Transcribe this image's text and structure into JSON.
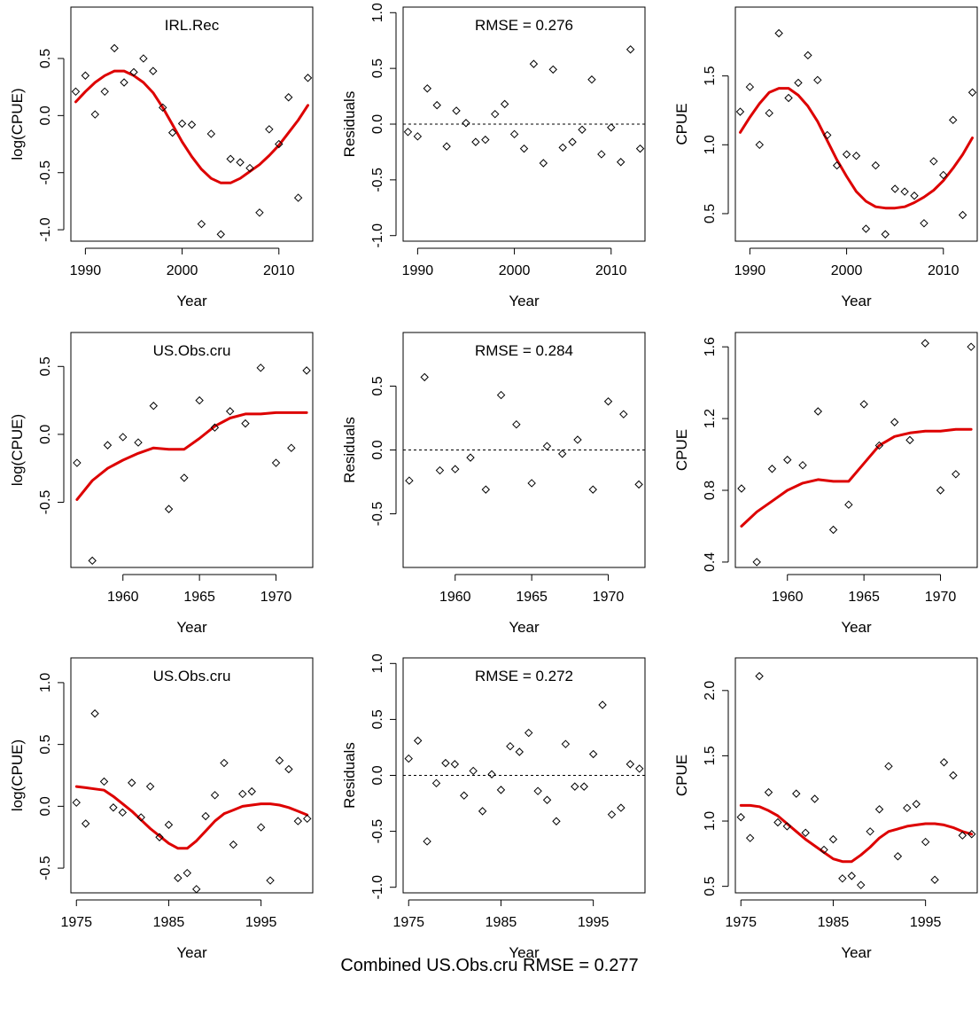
{
  "figure_caption": "Combined US.Obs.cru RMSE = 0.277",
  "colors": {
    "fit_line": "#dd0000",
    "points": "#000000",
    "axis": "#000000",
    "zero_line": "#000000"
  },
  "chart_data": [
    {
      "type": "scatter",
      "subtype": "log-cpue-fit",
      "title": "IRL.Rec",
      "xlabel": "Year",
      "ylabel": "log(CPUE)",
      "xlim": [
        1988.5,
        2013.5
      ],
      "ylim": [
        -1.1,
        0.95
      ],
      "xticks": [
        1990,
        2000,
        2010
      ],
      "yticks": [
        -1.0,
        -0.5,
        0.0,
        0.5
      ],
      "ytick_labels": [
        "-1.0",
        "-0.5",
        "0.0",
        "0.5"
      ],
      "points": {
        "x": [
          1989,
          1990,
          1991,
          1992,
          1993,
          1994,
          1995,
          1996,
          1997,
          1998,
          1999,
          2000,
          2001,
          2002,
          2003,
          2004,
          2005,
          2006,
          2007,
          2008,
          2009,
          2010,
          2011,
          2012,
          2013
        ],
        "y": [
          0.21,
          0.35,
          0.01,
          0.21,
          0.59,
          0.29,
          0.38,
          0.5,
          0.39,
          0.07,
          -0.15,
          -0.07,
          -0.08,
          -0.95,
          -0.16,
          -1.04,
          -0.38,
          -0.41,
          -0.46,
          -0.85,
          -0.12,
          -0.25,
          0.16,
          -0.72,
          0.33
        ]
      },
      "fit_line": {
        "x": [
          1989,
          1990,
          1991,
          1992,
          1993,
          1994,
          1995,
          1996,
          1997,
          1998,
          1999,
          2000,
          2001,
          2002,
          2003,
          2004,
          2005,
          2006,
          2007,
          2008,
          2009,
          2010,
          2011,
          2012,
          2013
        ],
        "y": [
          0.12,
          0.21,
          0.29,
          0.35,
          0.39,
          0.39,
          0.35,
          0.29,
          0.2,
          0.07,
          -0.08,
          -0.23,
          -0.36,
          -0.47,
          -0.55,
          -0.59,
          -0.59,
          -0.55,
          -0.49,
          -0.43,
          -0.35,
          -0.26,
          -0.15,
          -0.04,
          0.09
        ]
      }
    },
    {
      "type": "scatter",
      "subtype": "residuals",
      "title": "RMSE = 0.276",
      "xlabel": "Year",
      "ylabel": "Residuals",
      "xlim": [
        1988.5,
        2013.5
      ],
      "ylim": [
        -1.05,
        1.05
      ],
      "xticks": [
        1990,
        2000,
        2010
      ],
      "yticks": [
        -1.0,
        -0.5,
        0.0,
        0.5,
        1.0
      ],
      "ytick_labels": [
        "-1.0",
        "-0.5",
        "0.0",
        "0.5",
        "1.0"
      ],
      "zero_line": true,
      "points": {
        "x": [
          1989,
          1990,
          1991,
          1992,
          1993,
          1994,
          1995,
          1996,
          1997,
          1998,
          1999,
          2000,
          2001,
          2002,
          2003,
          2004,
          2005,
          2006,
          2007,
          2008,
          2009,
          2010,
          2011,
          2012,
          2013
        ],
        "y": [
          -0.07,
          -0.11,
          0.32,
          0.17,
          -0.2,
          0.12,
          0.01,
          -0.16,
          -0.14,
          0.09,
          0.18,
          -0.09,
          -0.22,
          0.54,
          -0.35,
          0.49,
          -0.21,
          -0.16,
          -0.05,
          0.4,
          -0.27,
          -0.03,
          -0.34,
          0.67,
          -0.22
        ]
      }
    },
    {
      "type": "scatter",
      "subtype": "cpue-fit",
      "title": "",
      "xlabel": "Year",
      "ylabel": "CPUE",
      "xlim": [
        1988.5,
        2013.5
      ],
      "ylim": [
        0.3,
        2.0
      ],
      "xticks": [
        1990,
        2000,
        2010
      ],
      "yticks": [
        0.5,
        1.0,
        1.5
      ],
      "ytick_labels": [
        "0.5",
        "1.0",
        "1.5"
      ],
      "points": {
        "x": [
          1989,
          1990,
          1991,
          1992,
          1993,
          1994,
          1995,
          1996,
          1997,
          1998,
          1999,
          2000,
          2001,
          2002,
          2003,
          2004,
          2005,
          2006,
          2007,
          2008,
          2009,
          2010,
          2011,
          2012,
          2013
        ],
        "y": [
          1.24,
          1.42,
          1.0,
          1.23,
          1.81,
          1.34,
          1.45,
          1.65,
          1.47,
          1.07,
          0.85,
          0.93,
          0.92,
          0.39,
          0.85,
          0.35,
          0.68,
          0.66,
          0.63,
          0.43,
          0.88,
          0.78,
          1.18,
          0.49,
          1.38
        ]
      },
      "fit_line": {
        "x": [
          1989,
          1990,
          1991,
          1992,
          1993,
          1994,
          1995,
          1996,
          1997,
          1998,
          1999,
          2000,
          2001,
          2002,
          2003,
          2004,
          2005,
          2006,
          2007,
          2008,
          2009,
          2010,
          2011,
          2012,
          2013
        ],
        "y": [
          1.09,
          1.2,
          1.3,
          1.38,
          1.41,
          1.41,
          1.36,
          1.28,
          1.17,
          1.03,
          0.89,
          0.77,
          0.66,
          0.59,
          0.55,
          0.54,
          0.54,
          0.55,
          0.58,
          0.62,
          0.67,
          0.74,
          0.83,
          0.93,
          1.05
        ]
      }
    },
    {
      "type": "scatter",
      "subtype": "log-cpue-fit",
      "title": "US.Obs.cru",
      "xlabel": "Year",
      "ylabel": "log(CPUE)",
      "xlim": [
        1956.6,
        1972.4
      ],
      "ylim": [
        -0.98,
        0.75
      ],
      "xticks": [
        1960,
        1965,
        1970
      ],
      "yticks": [
        -0.5,
        0.0,
        0.5
      ],
      "ytick_labels": [
        "-0.5",
        "0.0",
        "0.5"
      ],
      "points": {
        "x": [
          1957,
          1958,
          1959,
          1960,
          1961,
          1962,
          1963,
          1964,
          1965,
          1966,
          1967,
          1968,
          1969,
          1970,
          1971,
          1972
        ],
        "y": [
          -0.21,
          -0.93,
          -0.08,
          -0.02,
          -0.06,
          0.21,
          -0.55,
          -0.32,
          0.25,
          0.05,
          0.17,
          0.08,
          0.49,
          -0.21,
          -0.1,
          0.47
        ]
      },
      "fit_line": {
        "x": [
          1957,
          1958,
          1959,
          1960,
          1961,
          1962,
          1963,
          1964,
          1965,
          1966,
          1967,
          1968,
          1969,
          1970,
          1971,
          1972
        ],
        "y": [
          -0.48,
          -0.34,
          -0.25,
          -0.19,
          -0.14,
          -0.1,
          -0.11,
          -0.11,
          -0.03,
          0.06,
          0.12,
          0.15,
          0.15,
          0.16,
          0.16,
          0.16
        ]
      }
    },
    {
      "type": "scatter",
      "subtype": "residuals",
      "title": "RMSE = 0.284",
      "xlabel": "Year",
      "ylabel": "Residuals",
      "xlim": [
        1956.6,
        1972.4
      ],
      "ylim": [
        -0.92,
        0.92
      ],
      "xticks": [
        1960,
        1965,
        1970
      ],
      "yticks": [
        -0.5,
        0.0,
        0.5
      ],
      "ytick_labels": [
        "-0.5",
        "0.0",
        "0.5"
      ],
      "zero_line": true,
      "points": {
        "x": [
          1957,
          1958,
          1959,
          1960,
          1961,
          1962,
          1963,
          1964,
          1965,
          1966,
          1967,
          1968,
          1969,
          1970,
          1971,
          1972
        ],
        "y": [
          -0.24,
          0.57,
          -0.16,
          -0.15,
          -0.06,
          -0.31,
          0.43,
          0.2,
          -0.26,
          0.03,
          -0.03,
          0.08,
          -0.31,
          0.38,
          0.28,
          -0.27
        ]
      }
    },
    {
      "type": "scatter",
      "subtype": "cpue-fit",
      "title": "",
      "xlabel": "Year",
      "ylabel": "CPUE",
      "xlim": [
        1956.6,
        1972.4
      ],
      "ylim": [
        0.37,
        1.68
      ],
      "xticks": [
        1960,
        1965,
        1970
      ],
      "yticks": [
        0.4,
        0.8,
        1.2,
        1.6
      ],
      "ytick_labels": [
        "0.4",
        "0.8",
        "1.2",
        "1.6"
      ],
      "points": {
        "x": [
          1957,
          1958,
          1959,
          1960,
          1961,
          1962,
          1963,
          1964,
          1965,
          1966,
          1967,
          1968,
          1969,
          1970,
          1971,
          1972
        ],
        "y": [
          0.81,
          0.4,
          0.92,
          0.97,
          0.94,
          1.24,
          0.58,
          0.72,
          1.28,
          1.05,
          1.18,
          1.08,
          1.62,
          0.8,
          0.89,
          1.6
        ]
      },
      "fit_line": {
        "x": [
          1957,
          1958,
          1959,
          1960,
          1961,
          1962,
          1963,
          1964,
          1965,
          1966,
          1967,
          1968,
          1969,
          1970,
          1971,
          1972
        ],
        "y": [
          0.6,
          0.68,
          0.74,
          0.8,
          0.84,
          0.86,
          0.85,
          0.85,
          0.95,
          1.05,
          1.1,
          1.12,
          1.13,
          1.13,
          1.14,
          1.14
        ]
      }
    },
    {
      "type": "scatter",
      "subtype": "log-cpue-fit",
      "title": "US.Obs.cru",
      "xlabel": "Year",
      "ylabel": "log(CPUE)",
      "xlim": [
        1974.4,
        2000.6
      ],
      "ylim": [
        -0.7,
        1.2
      ],
      "xticks": [
        1975,
        1985,
        1995
      ],
      "yticks": [
        -0.5,
        0.0,
        0.5,
        1.0
      ],
      "ytick_labels": [
        "-0.5",
        "0.0",
        "0.5",
        "1.0"
      ],
      "points": {
        "x": [
          1975,
          1976,
          1977,
          1978,
          1979,
          1980,
          1981,
          1982,
          1983,
          1984,
          1985,
          1986,
          1987,
          1988,
          1989,
          1990,
          1991,
          1992,
          1993,
          1994,
          1995,
          1996,
          1997,
          1998,
          1999,
          2000
        ],
        "y": [
          0.03,
          -0.14,
          0.75,
          0.2,
          -0.01,
          -0.05,
          0.19,
          -0.09,
          0.16,
          -0.25,
          -0.15,
          -0.58,
          -0.54,
          -0.67,
          -0.08,
          0.09,
          0.35,
          -0.31,
          0.1,
          0.12,
          -0.17,
          -0.6,
          0.37,
          0.3,
          -0.12,
          -0.1
        ]
      },
      "fit_line": {
        "x": [
          1975,
          1976,
          1977,
          1978,
          1979,
          1980,
          1981,
          1982,
          1983,
          1984,
          1985,
          1986,
          1987,
          1988,
          1989,
          1990,
          1991,
          1992,
          1993,
          1994,
          1995,
          1996,
          1997,
          1998,
          1999,
          2000
        ],
        "y": [
          0.16,
          0.15,
          0.14,
          0.13,
          0.08,
          0.02,
          -0.04,
          -0.11,
          -0.18,
          -0.24,
          -0.3,
          -0.34,
          -0.34,
          -0.28,
          -0.2,
          -0.12,
          -0.06,
          -0.03,
          0.0,
          0.01,
          0.02,
          0.02,
          0.01,
          -0.01,
          -0.04,
          -0.07
        ]
      }
    },
    {
      "type": "scatter",
      "subtype": "residuals",
      "title": "RMSE = 0.272",
      "xlabel": "Year",
      "ylabel": "Residuals",
      "xlim": [
        1974.4,
        2000.6
      ],
      "ylim": [
        -1.05,
        1.05
      ],
      "xticks": [
        1975,
        1985,
        1995
      ],
      "yticks": [
        -1.0,
        -0.5,
        0.0,
        0.5,
        1.0
      ],
      "ytick_labels": [
        "-1.0",
        "-0.5",
        "0.0",
        "0.5",
        "1.0"
      ],
      "zero_line": true,
      "points": {
        "x": [
          1975,
          1976,
          1977,
          1978,
          1979,
          1980,
          1981,
          1982,
          1983,
          1984,
          1985,
          1986,
          1987,
          1988,
          1989,
          1990,
          1991,
          1992,
          1993,
          1994,
          1995,
          1996,
          1997,
          1998,
          1999,
          2000
        ],
        "y": [
          0.15,
          0.31,
          -0.59,
          -0.07,
          0.11,
          0.1,
          -0.18,
          0.04,
          -0.32,
          0.01,
          -0.13,
          0.26,
          0.21,
          0.38,
          -0.14,
          -0.22,
          -0.41,
          0.28,
          -0.1,
          -0.1,
          0.19,
          0.63,
          -0.35,
          -0.29,
          0.1,
          0.06
        ]
      }
    },
    {
      "type": "scatter",
      "subtype": "cpue-fit",
      "title": "",
      "xlabel": "Year",
      "ylabel": "CPUE",
      "xlim": [
        1974.4,
        2000.6
      ],
      "ylim": [
        0.45,
        2.25
      ],
      "xticks": [
        1975,
        1985,
        1995
      ],
      "yticks": [
        0.5,
        1.0,
        1.5,
        2.0
      ],
      "ytick_labels": [
        "0.5",
        "1.0",
        "1.5",
        "2.0"
      ],
      "points": {
        "x": [
          1975,
          1976,
          1977,
          1978,
          1979,
          1980,
          1981,
          1982,
          1983,
          1984,
          1985,
          1986,
          1987,
          1988,
          1989,
          1990,
          1991,
          1992,
          1993,
          1994,
          1995,
          1996,
          1997,
          1998,
          1999,
          2000
        ],
        "y": [
          1.03,
          0.87,
          2.11,
          1.22,
          0.99,
          0.96,
          1.21,
          0.91,
          1.17,
          0.78,
          0.86,
          0.56,
          0.58,
          0.51,
          0.92,
          1.09,
          1.42,
          0.73,
          1.1,
          1.13,
          0.84,
          0.55,
          1.45,
          1.35,
          0.89,
          0.9
        ]
      },
      "fit_line": {
        "x": [
          1975,
          1976,
          1977,
          1978,
          1979,
          1980,
          1981,
          1982,
          1983,
          1984,
          1985,
          1986,
          1987,
          1988,
          1989,
          1990,
          1991,
          1992,
          1993,
          1994,
          1995,
          1996,
          1997,
          1998,
          1999,
          2000
        ],
        "y": [
          1.12,
          1.12,
          1.11,
          1.08,
          1.04,
          0.98,
          0.92,
          0.86,
          0.81,
          0.76,
          0.71,
          0.69,
          0.69,
          0.74,
          0.8,
          0.87,
          0.92,
          0.94,
          0.96,
          0.97,
          0.98,
          0.98,
          0.97,
          0.95,
          0.92,
          0.9
        ]
      }
    }
  ]
}
